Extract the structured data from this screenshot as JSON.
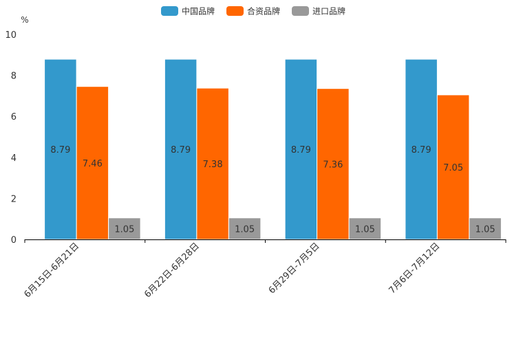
{
  "chart_data": {
    "type": "bar",
    "title": "",
    "xlabel": "",
    "ylabel": "%",
    "ylim": [
      0,
      10
    ],
    "yticks": [
      0,
      2,
      4,
      6,
      8,
      10
    ],
    "grid": false,
    "legend_position": "top-center",
    "categories": [
      "6月15日-6月21日",
      "6月22日-6月28日",
      "6月29日-7月5日",
      "7月6日-7月12日"
    ],
    "series": [
      {
        "name": "中国品牌",
        "color": "#3399CC",
        "values": [
          8.79,
          8.79,
          8.79,
          8.79
        ]
      },
      {
        "name": "合资品牌",
        "color": "#FF6600",
        "values": [
          7.46,
          7.38,
          7.36,
          7.05
        ]
      },
      {
        "name": "进口品牌",
        "color": "#999999",
        "values": [
          1.05,
          1.05,
          1.05,
          1.05
        ]
      }
    ]
  }
}
